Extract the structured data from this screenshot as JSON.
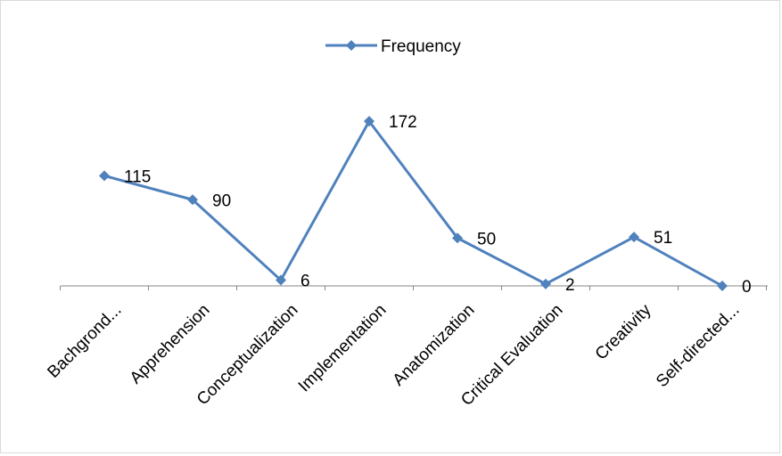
{
  "chart_data": {
    "type": "line",
    "categories": [
      "Bachgrond...",
      "Apprehension",
      "Conceptualization",
      "Implementation",
      "Anatomization",
      "Critical Evaluation",
      "Creativity",
      "Self-directed..."
    ],
    "series": [
      {
        "name": "Frequency",
        "values": [
          115,
          90,
          6,
          172,
          50,
          2,
          51,
          0
        ],
        "color": "#4f81bd"
      }
    ],
    "data_labels": [
      "115",
      "90",
      "6",
      "172",
      "50",
      "2",
      "51",
      "0"
    ],
    "legend_position": "top",
    "grid": false,
    "marker": "diamond"
  }
}
